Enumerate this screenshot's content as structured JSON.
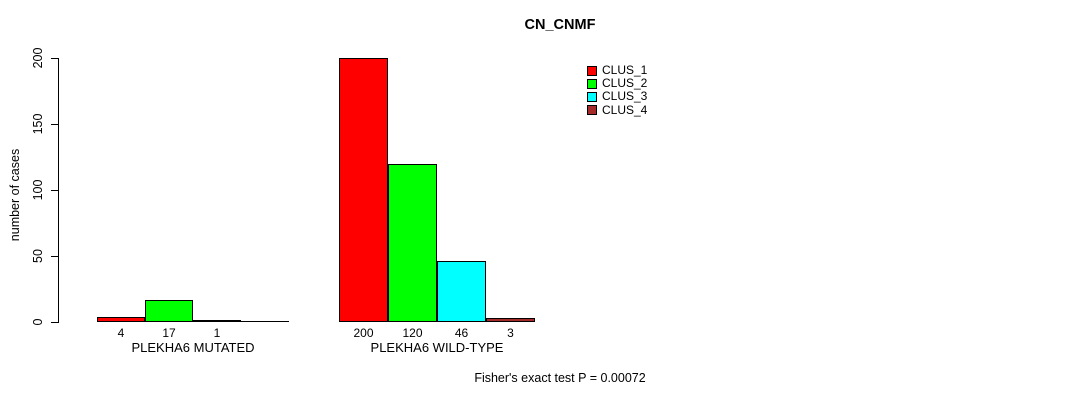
{
  "chart_data": {
    "type": "bar",
    "title": "CN_CNMF",
    "ylabel": "number of cases",
    "ylim": [
      0,
      200
    ],
    "yticks": [
      0,
      50,
      100,
      150,
      200
    ],
    "grid": false,
    "legend_position": "top-right",
    "series": [
      {
        "name": "CLUS_1",
        "color": "#ff0000"
      },
      {
        "name": "CLUS_2",
        "color": "#00ff00"
      },
      {
        "name": "CLUS_3",
        "color": "#00ffff"
      },
      {
        "name": "CLUS_4",
        "color": "#a52a2a"
      }
    ],
    "groups": [
      {
        "label": "PLEKHA6 MUTATED",
        "values": [
          4,
          17,
          1,
          0
        ],
        "value_labels": [
          "4",
          "17",
          "1",
          ""
        ]
      },
      {
        "label": "PLEKHA6 WILD-TYPE",
        "values": [
          200,
          120,
          46,
          3
        ],
        "value_labels": [
          "200",
          "120",
          "46",
          "3"
        ]
      }
    ],
    "footnote": "Fisher's exact test P = 0.00072"
  }
}
